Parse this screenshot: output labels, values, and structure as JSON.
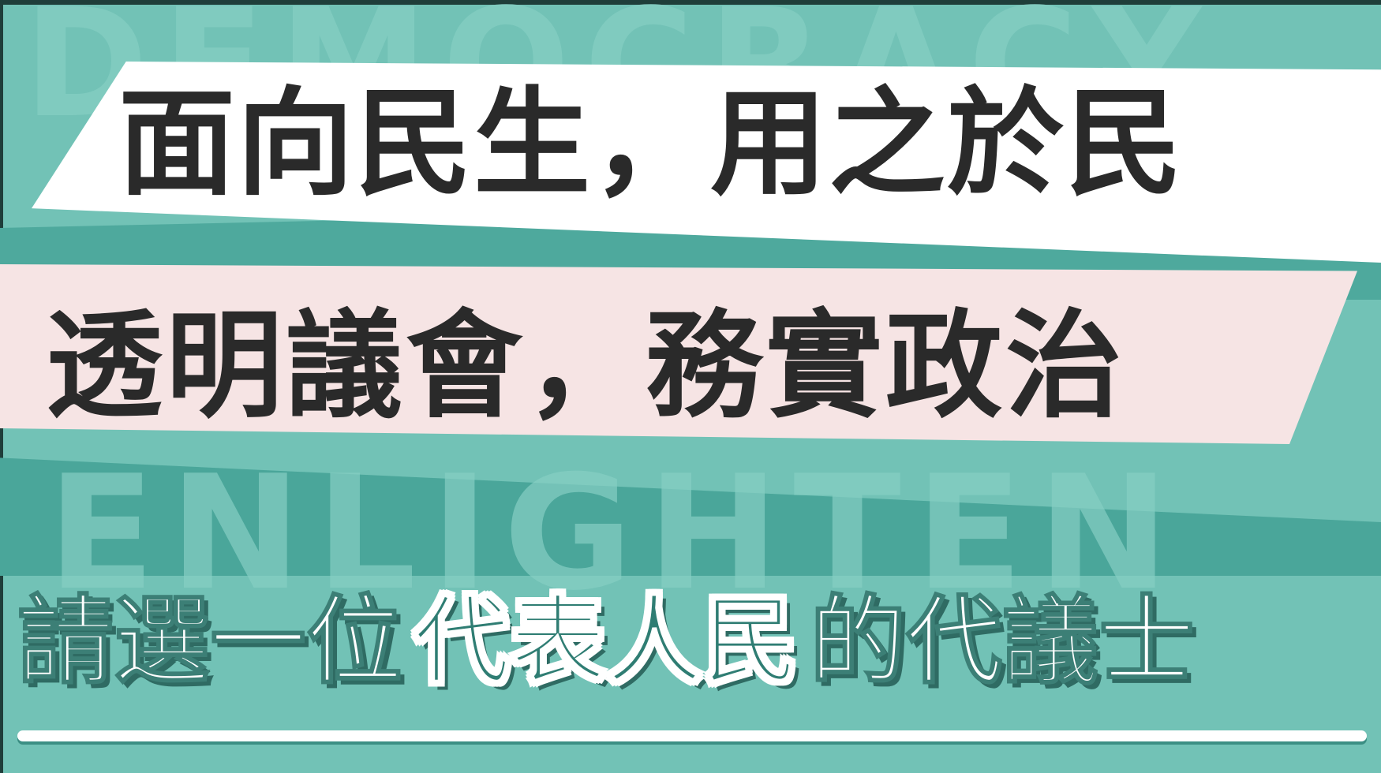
{
  "watermark": {
    "line1": "DEMOCRACY",
    "line2": "ENLIGHTEN"
  },
  "headline": {
    "line1": "面向民生，用之於民",
    "line2": "透明議會，務實政治"
  },
  "tagline": {
    "part1": "請選一位",
    "part2": "代表人民",
    "part3": "的代議士"
  },
  "colors": {
    "background": "#72c2b6",
    "banner_white": "#ffffff",
    "banner_pink": "#f6e4e4",
    "text_dark": "#2a2a2a",
    "accent_teal": "#2f7d73"
  }
}
